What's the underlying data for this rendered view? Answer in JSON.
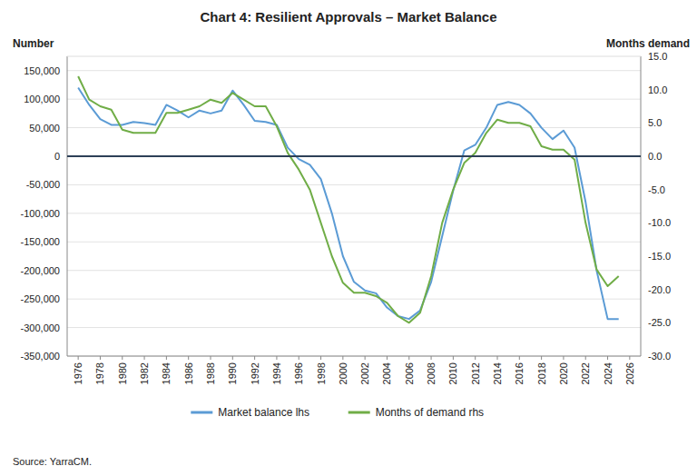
{
  "chart_data": {
    "type": "line",
    "title": "Chart 4: Resilient Approvals – Market Balance",
    "ylabel": "Number",
    "y2label": "Months demand",
    "source": "Source: YarraCM.",
    "x": [
      1976,
      1977,
      1978,
      1979,
      1980,
      1981,
      1982,
      1983,
      1984,
      1985,
      1986,
      1987,
      1988,
      1989,
      1990,
      1991,
      1992,
      1993,
      1994,
      1995,
      1996,
      1997,
      1998,
      1999,
      2000,
      2001,
      2002,
      2003,
      2004,
      2005,
      2006,
      2007,
      2008,
      2009,
      2010,
      2011,
      2012,
      2013,
      2014,
      2015,
      2016,
      2017,
      2018,
      2019,
      2020,
      2021,
      2022,
      2023,
      2024,
      2025
    ],
    "series": [
      {
        "name": "Market balance lhs",
        "color": "#5B9BD5",
        "values": [
          120000,
          90000,
          65000,
          55000,
          55000,
          60000,
          58000,
          55000,
          90000,
          80000,
          68000,
          80000,
          75000,
          80000,
          115000,
          90000,
          62000,
          60000,
          55000,
          15000,
          -5000,
          -15000,
          -40000,
          -100000,
          -175000,
          -220000,
          -235000,
          -240000,
          -265000,
          -280000,
          -285000,
          -270000,
          -220000,
          -140000,
          -60000,
          10000,
          20000,
          50000,
          90000,
          95000,
          90000,
          75000,
          50000,
          30000,
          45000,
          15000,
          -80000,
          -200000,
          -285000,
          -285000
        ]
      },
      {
        "name": "Months of demand rhs",
        "color": "#70AD47",
        "axis": "y2",
        "values": [
          12.0,
          8.5,
          7.5,
          7.0,
          4.0,
          3.5,
          3.5,
          3.5,
          6.5,
          6.5,
          7.0,
          7.5,
          8.5,
          8.0,
          9.5,
          8.5,
          7.5,
          7.5,
          4.5,
          0.5,
          -2.0,
          -5.0,
          -10.0,
          -15.0,
          -19.0,
          -20.5,
          -20.5,
          -21.0,
          -22.0,
          -24.0,
          -25.0,
          -23.5,
          -18.0,
          -10.0,
          -5.0,
          -1.0,
          0.5,
          3.5,
          5.5,
          5.0,
          5.0,
          4.5,
          1.5,
          1.0,
          1.0,
          -0.5,
          -10.0,
          -17.0,
          -19.5,
          -18.0
        ]
      }
    ],
    "xlim": [
      1975,
      2027
    ],
    "xticks": [
      1976,
      1978,
      1980,
      1982,
      1984,
      1986,
      1988,
      1990,
      1992,
      1994,
      1996,
      1998,
      2000,
      2002,
      2004,
      2006,
      2008,
      2010,
      2012,
      2014,
      2016,
      2018,
      2020,
      2022,
      2024,
      2026
    ],
    "ylim": [
      -350000,
      175000
    ],
    "yticks": [
      {
        "value": -350000,
        "label": "-350,000"
      },
      {
        "value": -300000,
        "label": "-300,000"
      },
      {
        "value": -250000,
        "label": "-250,000"
      },
      {
        "value": -200000,
        "label": "-200,000"
      },
      {
        "value": -150000,
        "label": "-150,000"
      },
      {
        "value": -100000,
        "label": "-100,000"
      },
      {
        "value": -50000,
        "label": "-50,000"
      },
      0,
      {
        "value": 50000,
        "label": "50,000"
      },
      {
        "value": 100000,
        "label": "100,000"
      },
      {
        "value": 150000,
        "label": "150,000"
      }
    ],
    "y2lim": [
      -30.0,
      15.0
    ],
    "y2ticks": [
      {
        "value": -30.0,
        "label": "-30.0"
      },
      {
        "value": -25.0,
        "label": "-25.0"
      },
      {
        "value": -20.0,
        "label": "-20.0"
      },
      {
        "value": -15.0,
        "label": "-15.0"
      },
      {
        "value": -10.0,
        "label": "-10.0"
      },
      {
        "value": -5.0,
        "label": "-5.0"
      },
      {
        "value": 0.0,
        "label": "0.0"
      },
      {
        "value": 5.0,
        "label": "5.0"
      },
      {
        "value": 10.0,
        "label": "10.0"
      },
      {
        "value": 15.0,
        "label": "15.0"
      }
    ],
    "grid": true,
    "legend": "bottom"
  }
}
